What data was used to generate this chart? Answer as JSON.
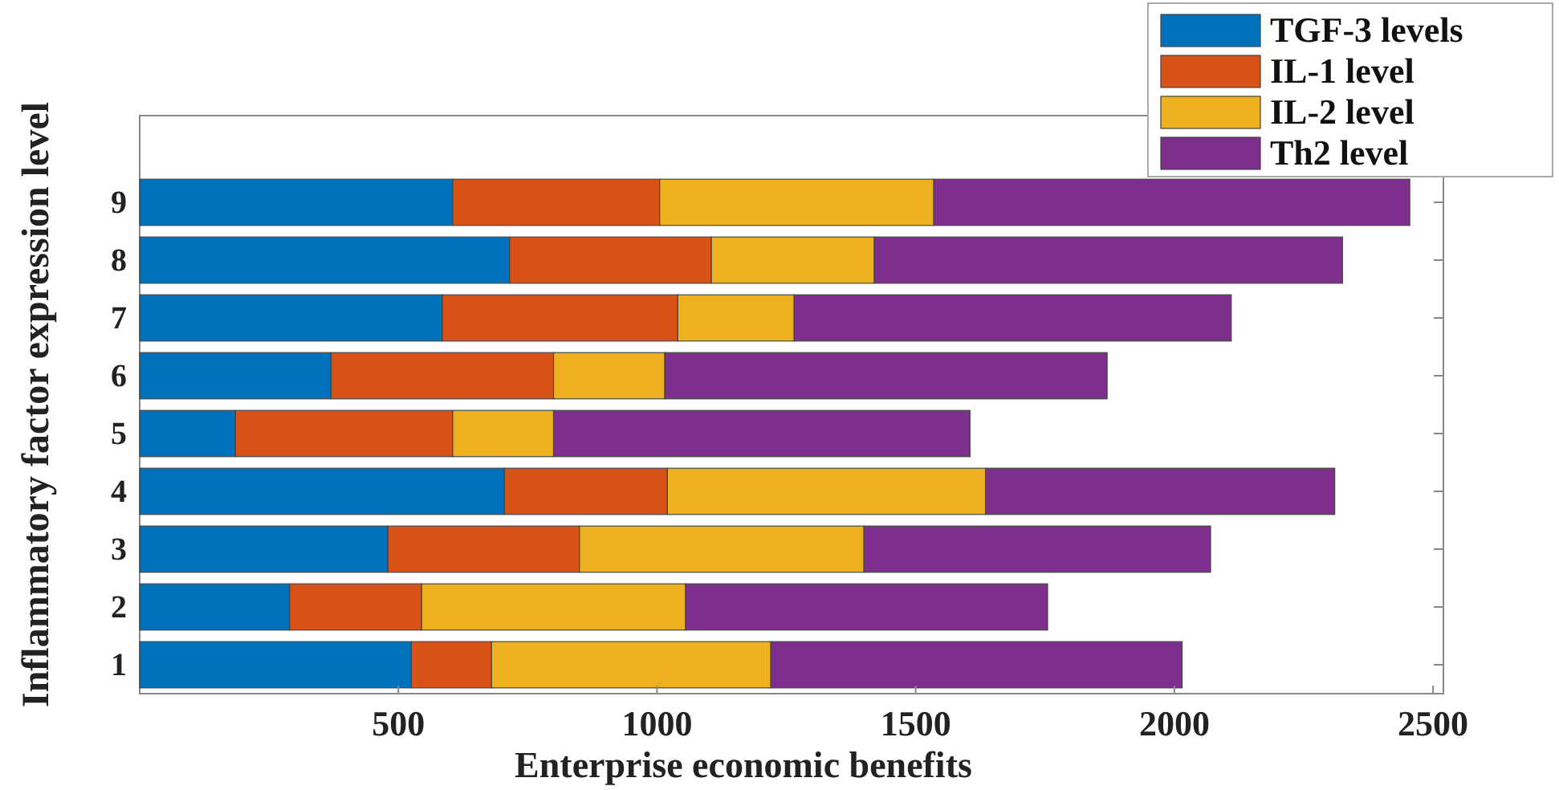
{
  "chart_data": {
    "type": "bar",
    "orientation": "horizontal",
    "stacked": true,
    "xlabel": "Enterprise economic benefits",
    "ylabel": "Inflammatory factor expression level",
    "categories": [
      "9",
      "8",
      "7",
      "6",
      "5",
      "4",
      "3",
      "2",
      "1"
    ],
    "series": [
      {
        "name": "TGF-3 levels",
        "color": "#0072bd",
        "values": [
          605,
          715,
          585,
          370,
          185,
          705,
          480,
          290,
          525
        ]
      },
      {
        "name": "IL-1 level",
        "color": "#d95319",
        "values": [
          400,
          390,
          455,
          430,
          420,
          315,
          370,
          255,
          155
        ]
      },
      {
        "name": "IL-2 level",
        "color": "#edb120",
        "values": [
          530,
          315,
          225,
          215,
          195,
          615,
          550,
          510,
          540
        ]
      },
      {
        "name": "Th2 level",
        "color": "#7e2f8e",
        "values": [
          920,
          905,
          845,
          855,
          805,
          675,
          670,
          700,
          795
        ]
      }
    ],
    "xlim": [
      0,
      2520
    ],
    "xticks": [
      500,
      1000,
      1500,
      2000,
      2500
    ],
    "grid": false,
    "legend": "top right"
  }
}
